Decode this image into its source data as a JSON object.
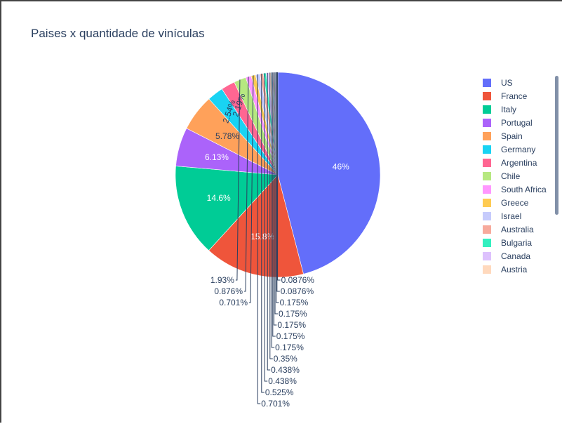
{
  "title": "Paises x quantidade de vinículas",
  "chart_data": {
    "type": "pie",
    "title": "Paises x quantidade de vinículas",
    "legend_position": "right",
    "legend_visible_count": 15,
    "slices": [
      {
        "label": "US",
        "percent": 46,
        "text": "46%",
        "color": "#636efa"
      },
      {
        "label": "France",
        "percent": 15.8,
        "text": "15.8%",
        "color": "#EF553B"
      },
      {
        "label": "Italy",
        "percent": 14.6,
        "text": "14.6%",
        "color": "#00cc96"
      },
      {
        "label": "Portugal",
        "percent": 6.13,
        "text": "6.13%",
        "color": "#ab63fa"
      },
      {
        "label": "Spain",
        "percent": 5.78,
        "text": "5.78%",
        "color": "#FFA15A"
      },
      {
        "label": "Germany",
        "percent": 2.54,
        "text": "2.54%",
        "color": "#19d3f3"
      },
      {
        "label": "Argentina",
        "percent": 2.19,
        "text": "2.19%",
        "color": "#FF6692"
      },
      {
        "label": "Chile",
        "percent": 1.93,
        "text": "1.93%",
        "color": "#B6E880"
      },
      {
        "label": "South Africa",
        "percent": 0.876,
        "text": "0.876%",
        "color": "#FF97FF"
      },
      {
        "label": "Greece",
        "percent": 0.701,
        "text": "0.701%",
        "color": "#FECB52"
      },
      {
        "label": "Israel",
        "percent": 0.701,
        "text": "0.701%",
        "color": "#c6cbfc"
      },
      {
        "label": "Australia",
        "percent": 0.525,
        "text": "0.525%",
        "color": "#f7aa9c"
      },
      {
        "label": "Bulgaria",
        "percent": 0.438,
        "text": "0.438%",
        "color": "#33f0c0"
      },
      {
        "label": "Canada",
        "percent": 0.438,
        "text": "0.438%",
        "color": "#ddc1fd"
      },
      {
        "label": "Austria",
        "percent": 0.35,
        "text": "0.35%",
        "color": "#ffd9bd"
      },
      {
        "label": "",
        "percent": 0.175,
        "text": "0.175%",
        "color": "#8ce5f9"
      },
      {
        "label": "",
        "percent": 0.175,
        "text": "0.175%",
        "color": "#ffb3c8"
      },
      {
        "label": "",
        "percent": 0.175,
        "text": "0.175%",
        "color": "#d8f3bf"
      },
      {
        "label": "",
        "percent": 0.175,
        "text": "0.175%",
        "color": "#ffcbff"
      },
      {
        "label": "",
        "percent": 0.175,
        "text": "0.175%",
        "color": "#fee5a8"
      },
      {
        "label": "",
        "percent": 0.0876,
        "text": "0.0876%",
        "color": "#b1b6fc"
      },
      {
        "label": "",
        "percent": 0.0876,
        "text": "0.0876%",
        "color": "#f58c79"
      }
    ]
  }
}
